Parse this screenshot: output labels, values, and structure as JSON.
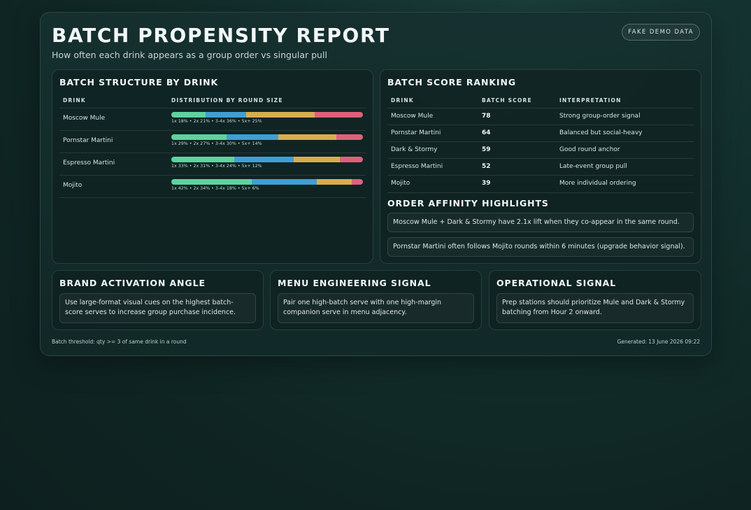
{
  "header": {
    "title": "BATCH PROPENSITY REPORT",
    "subtitle": "How often each drink appears as a group order vs singular pull",
    "badge": "FAKE DEMO DATA"
  },
  "colors": {
    "1x": "#5dd39e",
    "2x": "#3f9fd4",
    "3-4x": "#d8ad4f",
    "5x+": "#e0607a"
  },
  "structure": {
    "title": "BATCH STRUCTURE BY DRINK",
    "col_drink": "DRINK",
    "col_dist": "DISTRIBUTION BY ROUND SIZE"
  },
  "chart_data": {
    "type": "bar",
    "stacked": true,
    "orientation": "horizontal",
    "categories": [
      "Moscow Mule",
      "Pornstar Martini",
      "Espresso Martini",
      "Mojito"
    ],
    "series": [
      {
        "name": "1x",
        "values": [
          18,
          29,
          33,
          42
        ]
      },
      {
        "name": "2x",
        "values": [
          21,
          27,
          31,
          34
        ]
      },
      {
        "name": "3-4x",
        "values": [
          36,
          30,
          24,
          18
        ]
      },
      {
        "name": "5x+",
        "values": [
          25,
          14,
          12,
          6
        ]
      }
    ],
    "unit": "%",
    "labels": [
      "1x 18% • 2x 21% • 3-4x 36% • 5x+ 25%",
      "1x 29% • 2x 27% • 3-4x 30% • 5x+ 14%",
      "1x 33% • 2x 31% • 3-4x 24% • 5x+ 12%",
      "1x 42% • 2x 34% • 3-4x 18% • 5x+ 6%"
    ]
  },
  "ranking": {
    "title": "BATCH SCORE RANKING",
    "col_drink": "DRINK",
    "col_score": "BATCH SCORE",
    "col_interp": "INTERPRETATION",
    "rows": [
      {
        "drink": "Moscow Mule",
        "score": "78",
        "interp": "Strong group-order signal"
      },
      {
        "drink": "Pornstar Martini",
        "score": "64",
        "interp": "Balanced but social-heavy"
      },
      {
        "drink": "Dark & Stormy",
        "score": "59",
        "interp": "Good round anchor"
      },
      {
        "drink": "Espresso Martini",
        "score": "52",
        "interp": "Late-event group pull"
      },
      {
        "drink": "Mojito",
        "score": "39",
        "interp": "More individual ordering"
      }
    ]
  },
  "affinity": {
    "title": "ORDER AFFINITY HIGHLIGHTS",
    "items": [
      "Moscow Mule + Dark & Stormy have 2.1x lift when they co-appear in the same round.",
      "Pornstar Martini often follows Mojito rounds within 6 minutes (upgrade behavior signal)."
    ]
  },
  "insights": [
    {
      "title": "BRAND ACTIVATION ANGLE",
      "text": "Use large-format visual cues on the highest batch-score serves to increase group purchase incidence."
    },
    {
      "title": "MENU ENGINEERING SIGNAL",
      "text": "Pair one high-batch serve with one high-margin companion serve in menu adjacency."
    },
    {
      "title": "OPERATIONAL SIGNAL",
      "text": "Prep stations should prioritize Mule and Dark & Stormy batching from Hour 2 onward."
    }
  ],
  "footer": {
    "left": "Batch threshold: qty >= 3 of same drink in a round",
    "right": "Generated: 13 June 2026 09:22"
  }
}
